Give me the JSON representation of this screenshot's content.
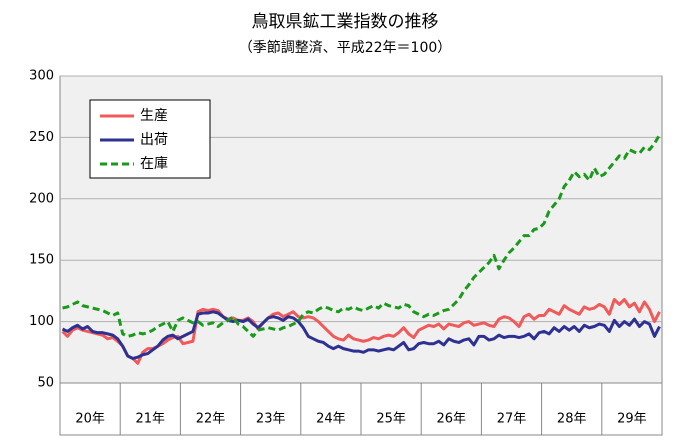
{
  "chart_data": {
    "type": "line",
    "title": "鳥取県鉱工業指数の推移",
    "subtitle": "（季節調整済、平成22年＝100）",
    "categories": [
      "20年",
      null,
      null,
      null,
      null,
      null,
      null,
      null,
      null,
      null,
      null,
      null,
      "21年",
      null,
      null,
      null,
      null,
      null,
      null,
      null,
      null,
      null,
      null,
      null,
      "22年",
      null,
      null,
      null,
      null,
      null,
      null,
      null,
      null,
      null,
      null,
      null,
      "23年",
      null,
      null,
      null,
      null,
      null,
      null,
      null,
      null,
      null,
      null,
      null,
      "24年",
      null,
      null,
      null,
      null,
      null,
      null,
      null,
      null,
      null,
      null,
      null,
      "25年",
      null,
      null,
      null,
      null,
      null,
      null,
      null,
      null,
      null,
      null,
      null,
      "26年",
      null,
      null,
      null,
      null,
      null,
      null,
      null,
      null,
      null,
      null,
      null,
      "27年",
      null,
      null,
      null,
      null,
      null,
      null,
      null,
      null,
      null,
      null,
      null,
      "28年",
      null,
      null,
      null,
      null,
      null,
      null,
      null,
      null,
      null,
      null,
      null,
      "29年",
      null,
      null,
      null,
      null,
      null,
      null,
      null,
      null,
      null,
      null,
      null
    ],
    "series": [
      {
        "name": "生産",
        "color": "#f05a5a",
        "dashed": false,
        "values": [
          92,
          88,
          93,
          95,
          93,
          92,
          91,
          90,
          89,
          86,
          87,
          84,
          80,
          72,
          70,
          66,
          75,
          78,
          78,
          80,
          82,
          85,
          87,
          88,
          82,
          83,
          84,
          108,
          110,
          109,
          110,
          109,
          104,
          102,
          103,
          101,
          101,
          103,
          100,
          94,
          99,
          103,
          106,
          107,
          104,
          106,
          108,
          104,
          103,
          104,
          103,
          100,
          96,
          92,
          88,
          86,
          85,
          89,
          86,
          85,
          84,
          85,
          87,
          86,
          88,
          89,
          88,
          91,
          95,
          90,
          87,
          93,
          95,
          97,
          96,
          98,
          94,
          98,
          97,
          96,
          99,
          100,
          97,
          98,
          99,
          97,
          96,
          102,
          104,
          103,
          100,
          96,
          104,
          106,
          102,
          105,
          105,
          110,
          108,
          106,
          113,
          110,
          108,
          106,
          112,
          110,
          111,
          114,
          112,
          106,
          118,
          114,
          118,
          112,
          115,
          108,
          116,
          110,
          100,
          108
        ]
      },
      {
        "name": "出荷",
        "color": "#2e3192",
        "dashed": false,
        "values": [
          94,
          92,
          95,
          97,
          94,
          96,
          92,
          91,
          91,
          90,
          89,
          86,
          80,
          72,
          70,
          71,
          73,
          74,
          77,
          80,
          85,
          88,
          89,
          86,
          88,
          90,
          92,
          106,
          107,
          107,
          108,
          107,
          104,
          101,
          100,
          101,
          100,
          102,
          98,
          95,
          99,
          103,
          104,
          103,
          101,
          104,
          103,
          100,
          95,
          88,
          86,
          84,
          83,
          80,
          78,
          80,
          78,
          77,
          76,
          76,
          75,
          77,
          77,
          76,
          77,
          78,
          77,
          80,
          83,
          77,
          78,
          82,
          83,
          82,
          82,
          84,
          81,
          86,
          84,
          83,
          85,
          86,
          81,
          88,
          88,
          85,
          86,
          89,
          87,
          88,
          88,
          87,
          88,
          90,
          86,
          91,
          92,
          90,
          95,
          92,
          96,
          93,
          96,
          92,
          97,
          95,
          96,
          98,
          97,
          92,
          101,
          96,
          100,
          97,
          102,
          96,
          100,
          98,
          88,
          96
        ]
      },
      {
        "name": "在庫",
        "color": "#1a9a1a",
        "dashed": true,
        "values": [
          111,
          112,
          114,
          116,
          113,
          112,
          111,
          110,
          109,
          107,
          105,
          107,
          90,
          88,
          89,
          91,
          90,
          91,
          93,
          96,
          98,
          100,
          92,
          101,
          103,
          101,
          99,
          100,
          97,
          98,
          99,
          96,
          99,
          101,
          104,
          98,
          96,
          92,
          88,
          93,
          94,
          95,
          94,
          93,
          95,
          96,
          98,
          100,
          106,
          108,
          107,
          110,
          112,
          111,
          109,
          108,
          111,
          110,
          112,
          110,
          109,
          111,
          113,
          111,
          115,
          113,
          112,
          111,
          114,
          113,
          108,
          106,
          104,
          106,
          105,
          107,
          109,
          110,
          114,
          118,
          125,
          130,
          136,
          140,
          144,
          148,
          154,
          143,
          150,
          156,
          160,
          165,
          170,
          170,
          175,
          176,
          180,
          190,
          195,
          200,
          210,
          215,
          222,
          218,
          220,
          215,
          225,
          218,
          220,
          225,
          230,
          235,
          233,
          240,
          238,
          237,
          242,
          240,
          245,
          252
        ]
      }
    ],
    "ylim": [
      50,
      300
    ],
    "yticks": [
      50,
      100,
      150,
      200,
      250,
      300
    ],
    "grid": true
  }
}
